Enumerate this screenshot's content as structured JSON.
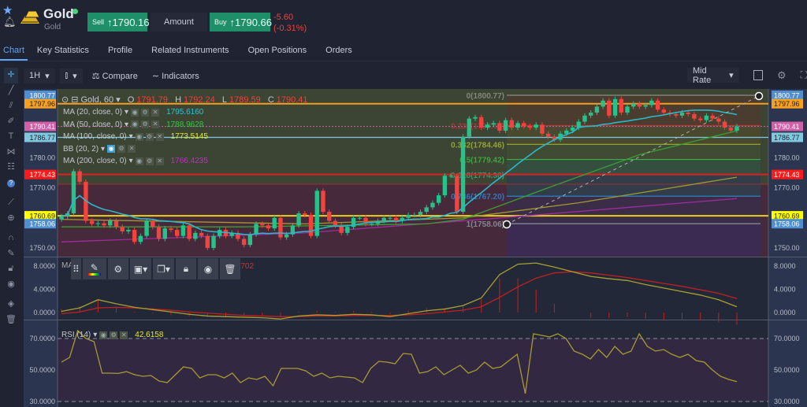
{
  "header": {
    "title": "Gold",
    "subtitle": "Gold",
    "sell_label": "Sell",
    "sell_price": "1790.16",
    "amount_label": "Amount",
    "buy_label": "Buy",
    "buy_price": "1790.66",
    "change": "-5.60",
    "change_pct": "(-0.31%)",
    "online_color": "#4cd07d"
  },
  "tabs": [
    {
      "label": "Chart",
      "active": true
    },
    {
      "label": "Key Statistics"
    },
    {
      "label": "Profile"
    },
    {
      "label": "Related Instruments"
    },
    {
      "label": "Open Positions"
    },
    {
      "label": "Orders"
    }
  ],
  "toolbar": {
    "interval": "1H",
    "chart_type_icon": "candlestick-icon",
    "compare": "Compare",
    "indicators": "Indicators",
    "rate": "Mid Rate"
  },
  "sidebar_icons": [
    "crosshair-icon",
    "trend-line-icon",
    "multi-line-icon",
    "brush-icon",
    "text-icon",
    "pattern-icon",
    "fib-icon",
    "help-icon",
    "ruler-icon",
    "zoom-in-icon",
    "magnet-icon",
    "lock-drawing-icon",
    "unlock-icon",
    "eye-icon",
    "layers-icon",
    "trash-icon"
  ],
  "legend": {
    "symbol": "Gold, 60",
    "o_label": "O",
    "o": "1791.79",
    "h_label": "H",
    "h": "1792.24",
    "l_label": "L",
    "l": "1789.59",
    "c_label": "C",
    "c": "1790.41",
    "indicators": [
      {
        "label": "MA (20, close, 0)",
        "value": "1795.6160",
        "color": "#22c8d8"
      },
      {
        "label": "MA (50, close, 0)",
        "value": "1788.9628",
        "color": "#2ecc40"
      },
      {
        "label": "MA (100, close, 0)",
        "value": "1773.5145",
        "color": "#e8e820"
      },
      {
        "label": "BB (20, 2)",
        "value": ""
      },
      {
        "label": "MA (200, close, 0)",
        "value": "1766.4235",
        "color": "#c030c0"
      }
    ]
  },
  "macd_legend": {
    "label": "MA",
    "value": ".9702"
  },
  "rsi_legend": {
    "label": "RSI (14)",
    "value": "42.6158"
  },
  "colors": {
    "up": "#26c28a",
    "down": "#f2433f"
  },
  "chart_data": {
    "type": "candlestick",
    "price_axis": {
      "ticks": [
        "1780.00",
        "1770.00",
        "1750.00"
      ],
      "range": [
        1748,
        1802
      ]
    },
    "price_markers": [
      {
        "value": "1800.77",
        "color": "#4f8fd0"
      },
      {
        "value": "1797.96",
        "color": "#f5a020"
      },
      {
        "value": "1790.41",
        "color": "#d060a8"
      },
      {
        "value": "1786.77",
        "color": "#80c8e0"
      },
      {
        "value": "1774.43",
        "color": "#ff1a1a"
      },
      {
        "value": "1760.69",
        "color": "#ffff00"
      },
      {
        "value": "1758.06",
        "color": "#4f8fd0"
      }
    ],
    "fib_levels": [
      {
        "label": "0(1800.77)",
        "v": 1800.77,
        "color": "#8a8f80"
      },
      {
        "label": "0.236(1790.69)",
        "v": 1790.69,
        "color": "#b03838"
      },
      {
        "label": "0.382(1784.46)",
        "v": 1784.46,
        "color": "#9ab030"
      },
      {
        "label": "0.5(1779.42)",
        "v": 1779.42,
        "color": "#3cb040"
      },
      {
        "label": "0.618(1774.38)",
        "v": 1774.38,
        "color": "#30a080"
      },
      {
        "label": "0.786(1767.20)",
        "v": 1767.2,
        "color": "#3080c0"
      },
      {
        "label": "1(1758.06)",
        "v": 1758.06,
        "color": "#8a8f9c"
      }
    ],
    "closes": [
      1760.5,
      1761.5,
      1775.5,
      1772,
      1759,
      1758,
      1758.2,
      1757.5,
      1759,
      1757,
      1755.5,
      1756,
      1752,
      1754,
      1759,
      1757,
      1753,
      1756.5,
      1756,
      1754,
      1757.5,
      1753,
      1755,
      1754,
      1750,
      1754,
      1756,
      1754,
      1755,
      1753,
      1751,
      1754.5,
      1758,
      1757.5,
      1756.5,
      1760,
      1753.5,
      1754.5,
      1757.5,
      1761.5,
      1761,
      1754,
      1769,
      1762,
      1759,
      1757.5,
      1755,
      1757,
      1760,
      1760,
      1758,
      1758,
      1759,
      1760,
      1760,
      1759,
      1760,
      1761,
      1761,
      1762,
      1763.5,
      1765,
      1767.5,
      1774,
      1774,
      1762,
      1787,
      1793,
      1793.5,
      1790,
      1791,
      1791.5,
      1789,
      1792.5,
      1790,
      1791.5,
      1790.5,
      1790,
      1791,
      1788,
      1787,
      1786,
      1788,
      1789,
      1790,
      1792,
      1794,
      1795,
      1797,
      1799,
      1794,
      1799.5,
      1795,
      1797,
      1798,
      1797,
      1797.5,
      1799,
      1796,
      1795,
      1794.5,
      1794,
      1795,
      1794.5,
      1793,
      1792.5,
      1794,
      1793,
      1792,
      1790,
      1789,
      1790.41
    ],
    "ma50": [
      [
        0,
        1757
      ],
      [
        30,
        1757
      ],
      [
        60,
        1758
      ],
      [
        66,
        1759.5
      ],
      [
        80,
        1770
      ],
      [
        95,
        1781
      ],
      [
        111,
        1788.96
      ]
    ],
    "ma100": [
      [
        0,
        1759.5
      ],
      [
        40,
        1758
      ],
      [
        66,
        1760
      ],
      [
        85,
        1765
      ],
      [
        111,
        1773.51
      ]
    ],
    "ma200": [
      [
        0,
        1752
      ],
      [
        40,
        1755
      ],
      [
        66,
        1759
      ],
      [
        111,
        1766.42
      ]
    ],
    "macd_axis": {
      "ticks": [
        "8.0000",
        "4.0000",
        "0.0000"
      ]
    },
    "macd": [
      0.2,
      0.8,
      2.2,
      1.5,
      0.9,
      0.5,
      0.1,
      -0.3,
      -0.6,
      -0.7,
      -0.8,
      -0.9,
      -1.1,
      -0.6,
      -0.4,
      -0.5,
      -0.3,
      -0.4,
      -0.7,
      -0.2,
      0.3,
      0.6,
      1.2,
      2.5,
      6.5,
      8.3,
      8.5,
      7.8,
      7.0,
      6.2,
      5.8,
      5.5,
      4.8,
      4.2,
      3.6,
      3.0,
      2.2,
      1.0
    ],
    "macd_signal": [
      -0.2,
      0.1,
      0.8,
      0.9,
      0.8,
      0.6,
      0.4,
      0.1,
      -0.1,
      -0.3,
      -0.5,
      -0.6,
      -0.7,
      -0.7,
      -0.6,
      -0.6,
      -0.5,
      -0.5,
      -0.5,
      -0.4,
      -0.2,
      0.1,
      0.4,
      1.0,
      2.6,
      4.4,
      5.9,
      6.8,
      7.0,
      6.8,
      6.4,
      6.0,
      5.5,
      5.0,
      4.5,
      3.9,
      3.3,
      2.4
    ],
    "rsi_axis": {
      "ticks": [
        "70.0000",
        "50.0000",
        "30.0000"
      ],
      "overbought": 70,
      "oversold": 30
    },
    "rsi": [
      55,
      58,
      75,
      70,
      68,
      48,
      48,
      47.8,
      49,
      47,
      46,
      46.5,
      43,
      42,
      47,
      52,
      51,
      45,
      47,
      47,
      45,
      48,
      42,
      45,
      44,
      46,
      40,
      51,
      51,
      51,
      49.5,
      46,
      48,
      45,
      46,
      45.5,
      45,
      42,
      51,
      55.5,
      55,
      54,
      60.5,
      60,
      48,
      49,
      52,
      47,
      50,
      53,
      48,
      50,
      55,
      51,
      52,
      56,
      60,
      35,
      73,
      72,
      71,
      73,
      70,
      62,
      60,
      57,
      63,
      58,
      65,
      60,
      62,
      73,
      65,
      62,
      63,
      60,
      58,
      60,
      56,
      55,
      50,
      46,
      44,
      42.6
    ]
  }
}
